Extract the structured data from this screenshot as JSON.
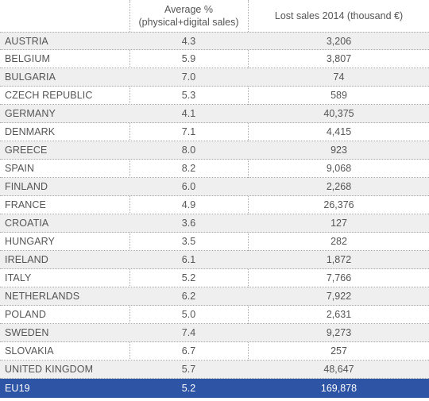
{
  "chart_data": {
    "type": "table",
    "columns": [
      "",
      "Average %\n(physical+digital sales)",
      "Lost sales 2014 (thousand €)"
    ],
    "header_col2_line1": "Average %",
    "header_col2_line2": "(physical+digital sales)",
    "header_col3": "Lost sales 2014 (thousand €)",
    "rows": [
      {
        "country": "AUSTRIA",
        "avg": "4.3",
        "lost": "3,206"
      },
      {
        "country": "BELGIUM",
        "avg": "5.9",
        "lost": "3,807"
      },
      {
        "country": "BULGARIA",
        "avg": "7.0",
        "lost": "74"
      },
      {
        "country": "CZECH REPUBLIC",
        "avg": "5.3",
        "lost": "589"
      },
      {
        "country": "GERMANY",
        "avg": "4.1",
        "lost": "40,375"
      },
      {
        "country": "DENMARK",
        "avg": "7.1",
        "lost": "4,415"
      },
      {
        "country": "GREECE",
        "avg": "8.0",
        "lost": "923"
      },
      {
        "country": "SPAIN",
        "avg": "8.2",
        "lost": "9,068"
      },
      {
        "country": "FINLAND",
        "avg": "6.0",
        "lost": "2,268"
      },
      {
        "country": "FRANCE",
        "avg": "4.9",
        "lost": "26,376"
      },
      {
        "country": "CROATIA",
        "avg": "3.6",
        "lost": "127"
      },
      {
        "country": "HUNGARY",
        "avg": "3.5",
        "lost": "282"
      },
      {
        "country": "IRELAND",
        "avg": "6.1",
        "lost": "1,872"
      },
      {
        "country": "ITALY",
        "avg": "5.2",
        "lost": "7,766"
      },
      {
        "country": "NETHERLANDS",
        "avg": "6.2",
        "lost": "7,922"
      },
      {
        "country": "POLAND",
        "avg": "5.0",
        "lost": "2,631"
      },
      {
        "country": "SWEDEN",
        "avg": "7.4",
        "lost": "9,273"
      },
      {
        "country": "SLOVAKIA",
        "avg": "6.7",
        "lost": "257"
      },
      {
        "country": "UNITED KINGDOM",
        "avg": "5.7",
        "lost": "48,647"
      }
    ],
    "total": {
      "country": "EU19",
      "avg": "5.2",
      "lost": "169,878"
    },
    "colors": {
      "total_row": "#2e54a6",
      "alt_row": "#efefef",
      "text": "#555555"
    }
  }
}
